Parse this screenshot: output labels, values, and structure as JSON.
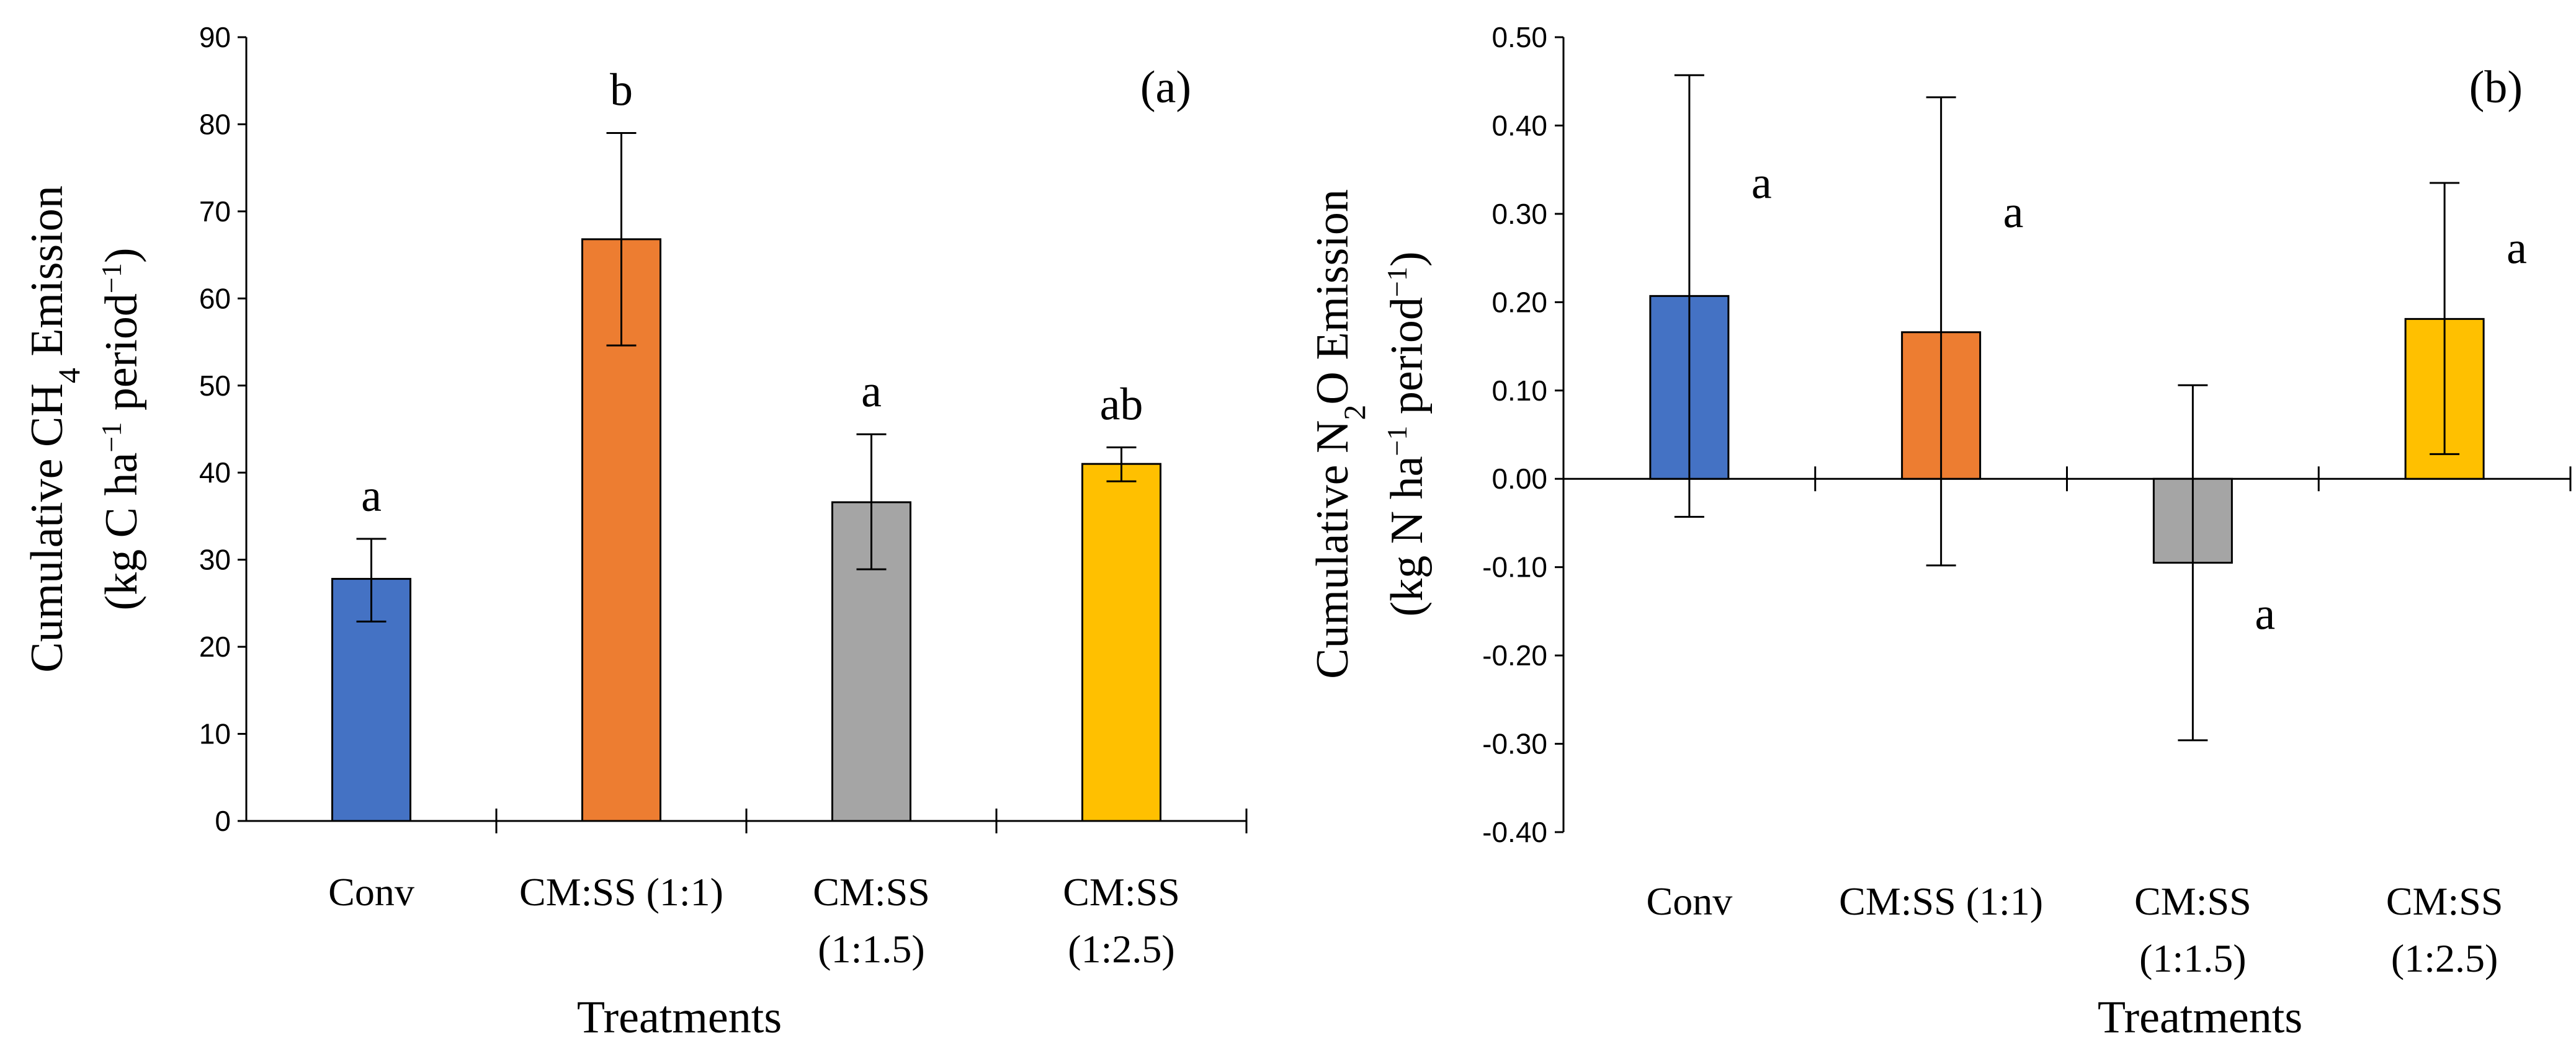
{
  "colors": {
    "conv": "#4472C4",
    "cmss_1_1": "#ED7D31",
    "cmss_1_1_5": "#A5A5A5",
    "cmss_1_2_5": "#FFC000",
    "axis": "#000000"
  },
  "chart_data": [
    {
      "type": "bar",
      "panel_label": "(a)",
      "categories": [
        [
          "Conv"
        ],
        [
          "CM:SS (1:1)"
        ],
        [
          "CM:SS",
          "(1:1.5)"
        ],
        [
          "CM:SS",
          "(1:2.5)"
        ]
      ],
      "values": [
        27.8,
        66.8,
        36.6,
        41.0
      ],
      "error_low": [
        22.9,
        54.6,
        28.9,
        39.0
      ],
      "error_high": [
        32.4,
        79.0,
        44.4,
        42.9
      ],
      "significance": [
        "a",
        "b",
        "a",
        "ab"
      ],
      "xlabel": "Treatments",
      "ylabel": {
        "line1_pre": "Cumulative CH",
        "line1_sub": "4",
        "line1_post": " Emission",
        "line2_pre": "(kg C ha",
        "line2_sup": "−1",
        "line2_mid": " period",
        "line2_sup2": "−1",
        "line2_post": ")"
      },
      "ylim": [
        0,
        90
      ],
      "yticks": [
        "0",
        "10",
        "20",
        "30",
        "40",
        "50",
        "60",
        "70",
        "80",
        "90"
      ],
      "ytick_values": [
        0,
        10,
        20,
        30,
        40,
        50,
        60,
        70,
        80,
        90
      ]
    },
    {
      "type": "bar",
      "panel_label": "(b)",
      "categories": [
        [
          "Conv"
        ],
        [
          "CM:SS (1:1)"
        ],
        [
          "CM:SS",
          "(1:1.5)"
        ],
        [
          "CM:SS",
          "(1:2.5)"
        ]
      ],
      "values": [
        0.207,
        0.166,
        -0.095,
        0.181
      ],
      "error_low": [
        -0.043,
        -0.098,
        -0.296,
        0.028
      ],
      "error_high": [
        0.457,
        0.432,
        0.106,
        0.335
      ],
      "significance": [
        "a",
        "a",
        "a",
        "a"
      ],
      "xlabel": "Treatments",
      "ylabel": {
        "line1_pre": "Cumulative N",
        "line1_sub": "2",
        "line1_post": "O Emission",
        "line2_pre": "(kg N ha",
        "line2_sup": "−1",
        "line2_mid": " period",
        "line2_sup2": "−1",
        "line2_post": ")"
      },
      "ylim": [
        -0.4,
        0.5
      ],
      "yticks": [
        "-0.40",
        "-0.30",
        "-0.20",
        "-0.10",
        "0.00",
        "0.10",
        "0.20",
        "0.30",
        "0.40",
        "0.50"
      ],
      "ytick_values": [
        -0.4,
        -0.3,
        -0.2,
        -0.1,
        0.0,
        0.1,
        0.2,
        0.3,
        0.4,
        0.5
      ]
    }
  ]
}
